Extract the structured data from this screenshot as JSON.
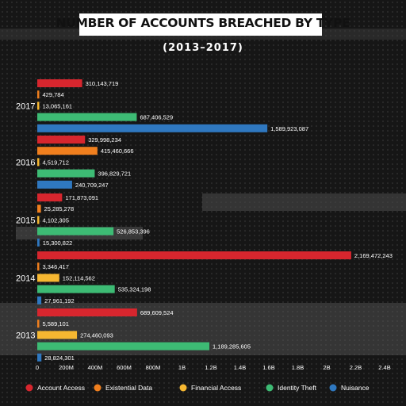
{
  "colors": {
    "account_access": "#d7262e",
    "existential_data": "#f07f1e",
    "financial_access": "#f6b731",
    "identity_theft": "#3dbb74",
    "nuisance": "#2f78c0",
    "background": "#161616",
    "text": "#ffffff"
  },
  "chart_data": {
    "type": "bar",
    "orientation": "horizontal",
    "title": "NUMBER OF ACCOUNTS BREACHED BY TYPE",
    "subtitle": "(2013–2017)",
    "categories": [
      "2017",
      "2016",
      "2015",
      "2014",
      "2013"
    ],
    "series": [
      {
        "name": "Account Access",
        "color": "#d7262e",
        "values": [
          310143719,
          329998234,
          171873091,
          2169472243,
          689609524
        ]
      },
      {
        "name": "Existential Data",
        "color": "#f07f1e",
        "values": [
          429784,
          415460666,
          25285278,
          3346417,
          5589101
        ]
      },
      {
        "name": "Financial Access",
        "color": "#f6b731",
        "values": [
          13065161,
          4519712,
          4102305,
          152114562,
          274460093
        ]
      },
      {
        "name": "Identity Theft",
        "color": "#3dbb74",
        "values": [
          687406529,
          396829721,
          526853396,
          535324198,
          1189285605
        ]
      },
      {
        "name": "Nuisance",
        "color": "#2f78c0",
        "values": [
          1589923087,
          240709247,
          15300822,
          27961192,
          28824301
        ]
      }
    ],
    "value_labels": [
      [
        "310,143,719",
        "429,784",
        "13,065,161",
        "687,406,529",
        "1,589,923,087"
      ],
      [
        "329,998,234",
        "415,460,666",
        "4,519,712",
        "396,829,721",
        "240,709,247"
      ],
      [
        "171,873,091",
        "25,285,278",
        "4,102,305",
        "526,853,396",
        "15,300,822"
      ],
      [
        "2,169,472,243",
        "3,346,417",
        "152,114,562",
        "535,324,198",
        "27,961,192"
      ],
      [
        "689,609,524",
        "5,589,101",
        "274,460,093",
        "1,189,285,605",
        "28,824,301"
      ]
    ],
    "xticks": [
      0,
      200000000,
      400000000,
      600000000,
      800000000,
      1000000000,
      1200000000,
      1400000000,
      1600000000,
      1800000000,
      2000000000,
      2200000000,
      2400000000
    ],
    "xtick_labels": [
      "0",
      "200M",
      "400M",
      "600M",
      "800M",
      "1B",
      "1.2B",
      "1.4B",
      "1.6B",
      "1.8B",
      "2B",
      "2.2B",
      "2.4B"
    ],
    "xlim": [
      0,
      2400000000
    ],
    "xlabel": "",
    "ylabel": "",
    "grid": false,
    "legend": "bottom"
  }
}
